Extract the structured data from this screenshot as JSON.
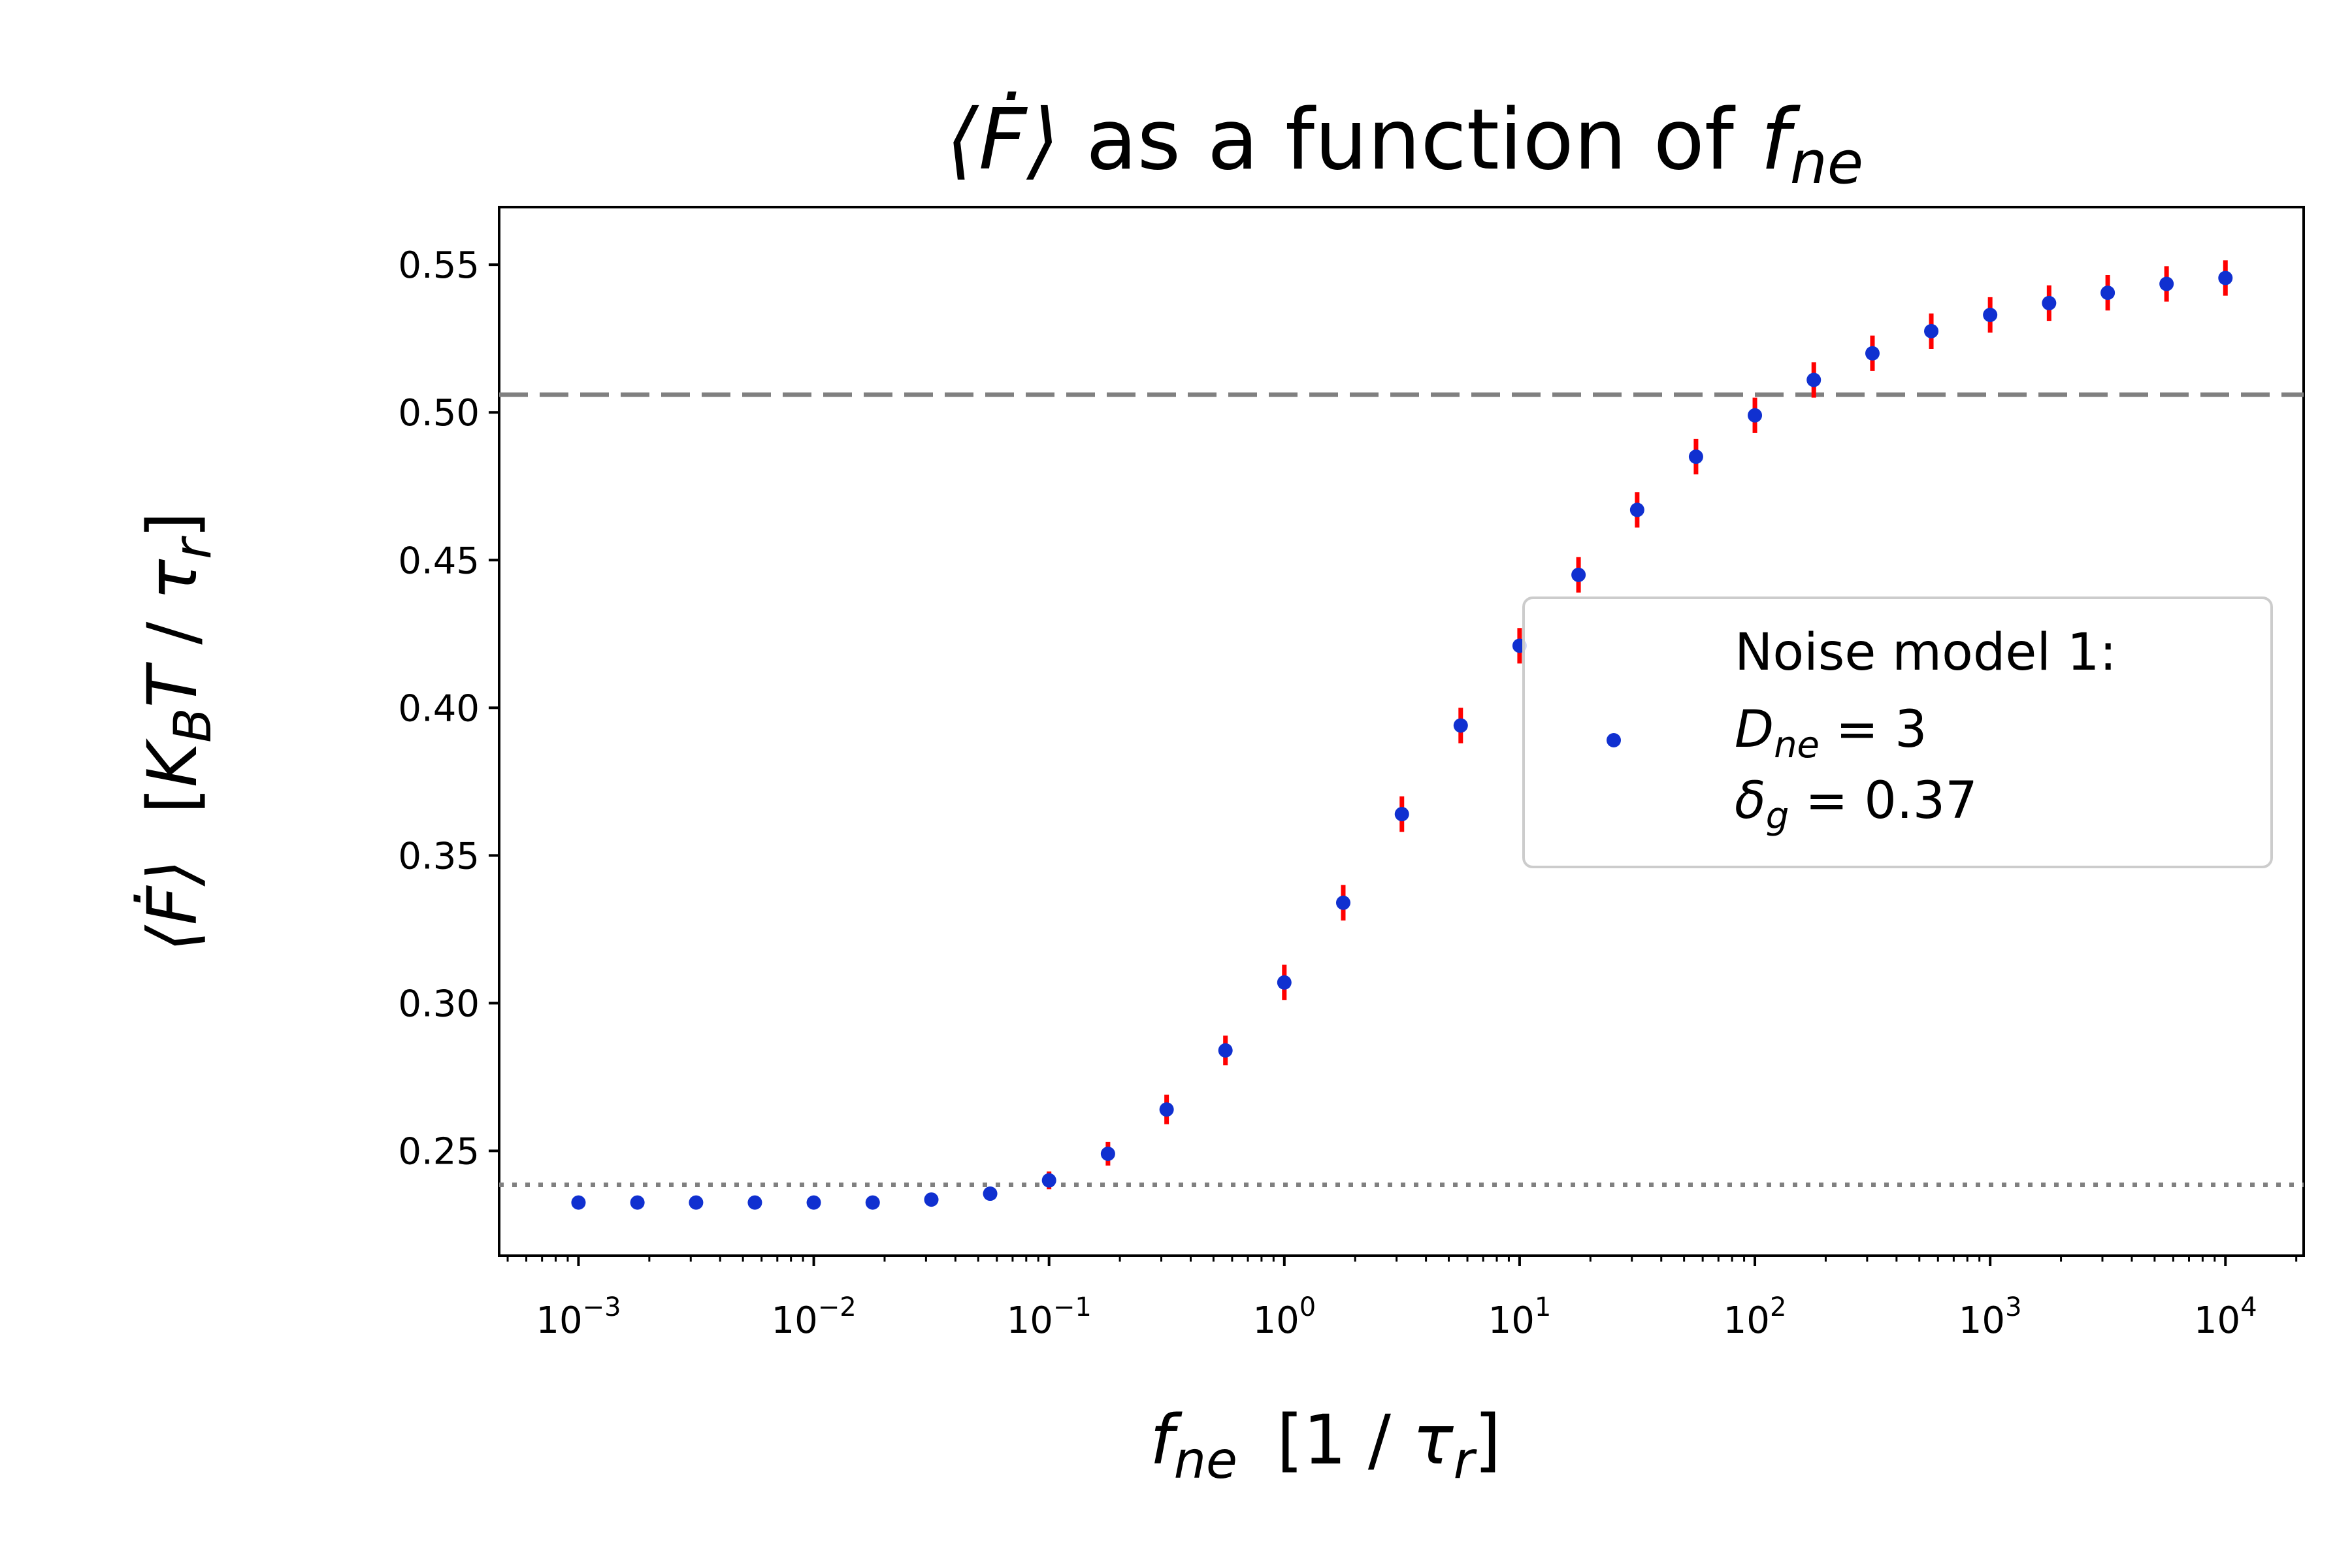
{
  "chart_data": {
    "type": "scatter",
    "title": "⟨Ḟ⟩ as a function of f_ne",
    "title_parts": {
      "lhs": "⟨Ḟ⟩",
      "mid": "as a function of",
      "sym": "f",
      "sub": "ne"
    },
    "xlabel": "f_ne   [1 / τ_r]",
    "ylabel": "⟨Ḟ⟩   [K_B T / τ_r]",
    "xscale": "log",
    "xlim": [
      0.00046,
      21500
    ],
    "ylim": [
      0.2145,
      0.5695
    ],
    "yticks": [
      0.25,
      0.3,
      0.35,
      0.4,
      0.45,
      0.5,
      0.55
    ],
    "ytick_labels": [
      "0.25",
      "0.30",
      "0.35",
      "0.40",
      "0.45",
      "0.50",
      "0.55"
    ],
    "xtick_exponents": [
      -3,
      -2,
      -1,
      0,
      1,
      2,
      3,
      4
    ],
    "xtick_base": "10",
    "grid": false,
    "reference_lines": [
      {
        "y": 0.506,
        "style": "dashed",
        "color": "#808080"
      },
      {
        "y": 0.2385,
        "style": "dotted",
        "color": "#808080"
      }
    ],
    "legend": {
      "placement": "center-right",
      "lines": [
        "Noise model 1:",
        "D_ne = 3",
        "δ_g = 0.37"
      ]
    },
    "colors": {
      "marker": "#1030d0",
      "errorbar": "#ff0000",
      "ref_line": "#808080"
    },
    "series": [
      {
        "name": "Noise model 1: D_ne = 3, δ_g = 0.37",
        "x": [
          0.001,
          0.00178,
          0.00316,
          0.00562,
          0.01,
          0.0178,
          0.0316,
          0.0562,
          0.1,
          0.178,
          0.316,
          0.562,
          1,
          1.78,
          3.16,
          5.62,
          10,
          17.8,
          31.6,
          56.2,
          100,
          178,
          316,
          562,
          1000,
          1780,
          3160,
          5620,
          10000
        ],
        "y": [
          0.2325,
          0.2325,
          0.2325,
          0.2325,
          0.2325,
          0.2325,
          0.2335,
          0.2355,
          0.24,
          0.249,
          0.264,
          0.284,
          0.307,
          0.334,
          0.364,
          0.394,
          0.421,
          0.445,
          0.467,
          0.485,
          0.499,
          0.511,
          0.52,
          0.5275,
          0.533,
          0.537,
          0.5405,
          0.5435,
          0.5455
        ],
        "yerr": [
          0.002,
          0.002,
          0.002,
          0.002,
          0.002,
          0.002,
          0.002,
          0.002,
          0.003,
          0.004,
          0.005,
          0.005,
          0.006,
          0.006,
          0.006,
          0.006,
          0.006,
          0.006,
          0.006,
          0.006,
          0.006,
          0.006,
          0.006,
          0.006,
          0.006,
          0.006,
          0.006,
          0.006,
          0.006
        ]
      }
    ]
  }
}
